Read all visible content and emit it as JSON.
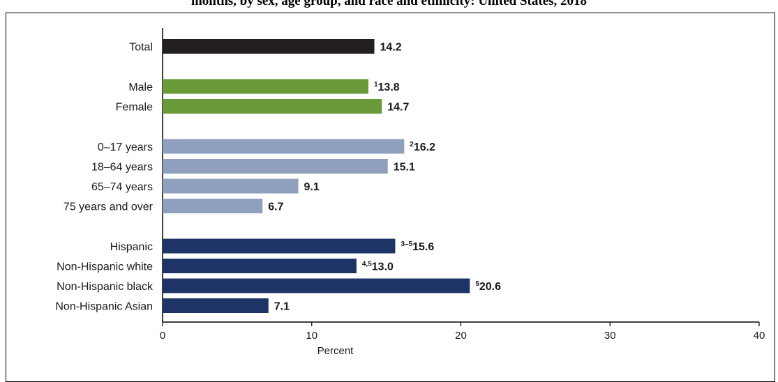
{
  "title": "months, by sex, age group, and race and ethnicity: United States, 2018",
  "chart_data": {
    "type": "bar",
    "orientation": "horizontal",
    "xlabel": "Percent",
    "xlim": [
      0,
      40
    ],
    "xticks": [
      "0",
      "10",
      "20",
      "30",
      "40"
    ],
    "grid": false,
    "groups": [
      {
        "color": "#231f20",
        "bars": [
          {
            "label": "Total",
            "value": 14.2,
            "display": "14.2",
            "note": ""
          }
        ]
      },
      {
        "color": "#6a9a3a",
        "bars": [
          {
            "label": "Male",
            "value": 13.8,
            "display": "13.8",
            "note": "1"
          },
          {
            "label": "Female",
            "value": 14.7,
            "display": "14.7",
            "note": ""
          }
        ]
      },
      {
        "color": "#8fa0bf",
        "bars": [
          {
            "label": "0–17 years",
            "value": 16.2,
            "display": "16.2",
            "note": "2"
          },
          {
            "label": "18–64 years",
            "value": 15.1,
            "display": "15.1",
            "note": ""
          },
          {
            "label": "65–74 years",
            "value": 9.1,
            "display": "9.1",
            "note": ""
          },
          {
            "label": "75 years and over",
            "value": 6.7,
            "display": "6.7",
            "note": ""
          }
        ]
      },
      {
        "color": "#1f3466",
        "bars": [
          {
            "label": "Hispanic",
            "value": 15.6,
            "display": "15.6",
            "note": "3–5"
          },
          {
            "label": "Non-Hispanic white",
            "value": 13.0,
            "display": "13.0",
            "note": "4,5"
          },
          {
            "label": "Non-Hispanic black",
            "value": 20.6,
            "display": "20.6",
            "note": "5"
          },
          {
            "label": "Non-Hispanic Asian",
            "value": 7.1,
            "display": "7.1",
            "note": ""
          }
        ]
      }
    ]
  }
}
